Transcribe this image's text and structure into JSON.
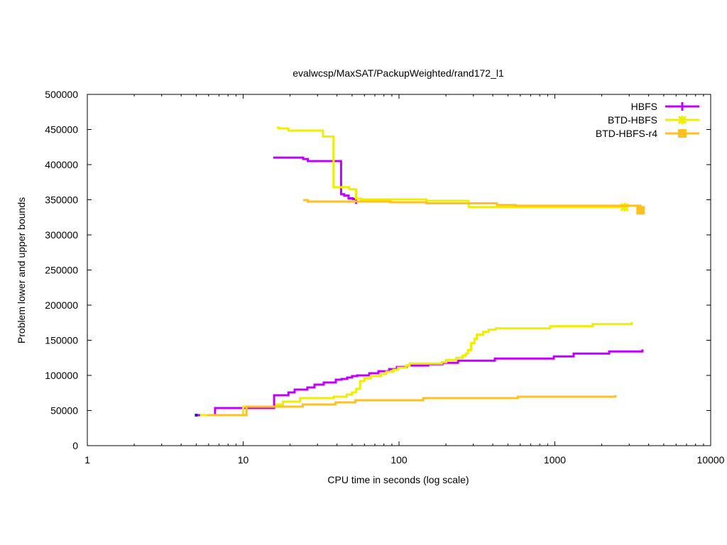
{
  "chart_data": {
    "type": "line",
    "title": "evalwcsp/MaxSAT/PackupWeighted/rand172_l1",
    "xlabel": "CPU time in seconds (log scale)",
    "ylabel": "Problem lower and upper bounds",
    "xscale": "log",
    "xlim": [
      1,
      10000
    ],
    "ylim": [
      0,
      500000
    ],
    "xticks": [
      1,
      10,
      100,
      1000,
      10000
    ],
    "xtick_labels": [
      "1",
      "10",
      "100",
      "1000",
      "10000"
    ],
    "yticks": [
      0,
      50000,
      100000,
      150000,
      200000,
      250000,
      300000,
      350000,
      400000,
      450000,
      500000
    ],
    "ytick_labels": [
      "0",
      "50000",
      "100000",
      "150000",
      "200000",
      "250000",
      "300000",
      "350000",
      "400000",
      "450000",
      "500000"
    ],
    "grid": false,
    "legend_position": "top-right",
    "step_style": "steps-after",
    "series": [
      {
        "name": "HBFS",
        "color": "#c000ff",
        "marker": "plus",
        "upper": [
          [
            15.6,
            410000
          ],
          [
            24.3,
            408000
          ],
          [
            26,
            405000
          ],
          [
            42.5,
            358000
          ],
          [
            44.5,
            356000
          ],
          [
            47.5,
            352000
          ],
          [
            50.5,
            351000
          ],
          [
            53,
            344000
          ]
        ],
        "lower": [
          [
            5,
            43400
          ],
          [
            6.6,
            53500
          ],
          [
            15.8,
            71700
          ],
          [
            19.5,
            75800
          ],
          [
            21.4,
            79800
          ],
          [
            25.8,
            82800
          ],
          [
            28.7,
            86900
          ],
          [
            32.9,
            89900
          ],
          [
            39.3,
            93900
          ],
          [
            42.8,
            94900
          ],
          [
            46.5,
            97000
          ],
          [
            50,
            99000
          ],
          [
            53.9,
            100000
          ],
          [
            64.4,
            103000
          ],
          [
            73.8,
            106000
          ],
          [
            86.4,
            109000
          ],
          [
            96.9,
            112000
          ],
          [
            112,
            114000
          ],
          [
            154,
            116000
          ],
          [
            190,
            118000
          ],
          [
            239,
            121000
          ],
          [
            412,
            124000
          ],
          [
            985,
            127000
          ],
          [
            1320,
            131000
          ],
          [
            2230,
            134000
          ],
          [
            3650,
            137000
          ]
        ]
      },
      {
        "name": "BTD-HBFS",
        "color": "#eeee00",
        "marker": "star",
        "upper": [
          [
            16.4,
            452500
          ],
          [
            17,
            451500
          ],
          [
            19.5,
            448500
          ],
          [
            32.5,
            440000
          ],
          [
            38,
            368000
          ],
          [
            48,
            365000
          ],
          [
            53,
            351500
          ],
          [
            57,
            350500
          ],
          [
            150,
            348500
          ],
          [
            280,
            339500
          ],
          [
            2800,
            339500
          ]
        ],
        "lower": [
          [
            5.3,
            43400
          ],
          [
            10,
            55600
          ],
          [
            16.3,
            58600
          ],
          [
            18,
            62600
          ],
          [
            23.2,
            67700
          ],
          [
            38.1,
            69700
          ],
          [
            46.2,
            72700
          ],
          [
            50,
            75800
          ],
          [
            53.1,
            80800
          ],
          [
            56.3,
            91900
          ],
          [
            60,
            95900
          ],
          [
            65.9,
            99000
          ],
          [
            76.7,
            102000
          ],
          [
            82.8,
            105000
          ],
          [
            92,
            108000
          ],
          [
            98.6,
            111000
          ],
          [
            111,
            114000
          ],
          [
            117,
            117000
          ],
          [
            188,
            119000
          ],
          [
            201,
            122000
          ],
          [
            233,
            125000
          ],
          [
            256,
            128000
          ],
          [
            268,
            131000
          ],
          [
            277,
            136000
          ],
          [
            290,
            146000
          ],
          [
            305,
            152000
          ],
          [
            316,
            158000
          ],
          [
            347,
            162000
          ],
          [
            376,
            165000
          ],
          [
            418,
            167000
          ],
          [
            933,
            170000
          ],
          [
            1750,
            173000
          ],
          [
            3120,
            176000
          ]
        ],
        "end_marker": [
          2800,
          339500
        ]
      },
      {
        "name": "BTD-HBFS-r4",
        "color": "#ffc020",
        "marker": "square",
        "upper": [
          [
            24.3,
            349500
          ],
          [
            26,
            347500
          ],
          [
            88,
            346500
          ],
          [
            150,
            345000
          ],
          [
            425,
            342500
          ],
          [
            560,
            341500
          ],
          [
            3600,
            341500
          ]
        ],
        "lower": [
          [
            5.9,
            43400
          ],
          [
            10.5,
            55600
          ],
          [
            24.1,
            58600
          ],
          [
            39.2,
            61600
          ],
          [
            52.5,
            64600
          ],
          [
            143,
            67700
          ],
          [
            580,
            69700
          ],
          [
            2450,
            71700
          ]
        ],
        "end_marker": [
          3550,
          335000
        ]
      }
    ],
    "start_point_color": "#1a1ad0"
  }
}
